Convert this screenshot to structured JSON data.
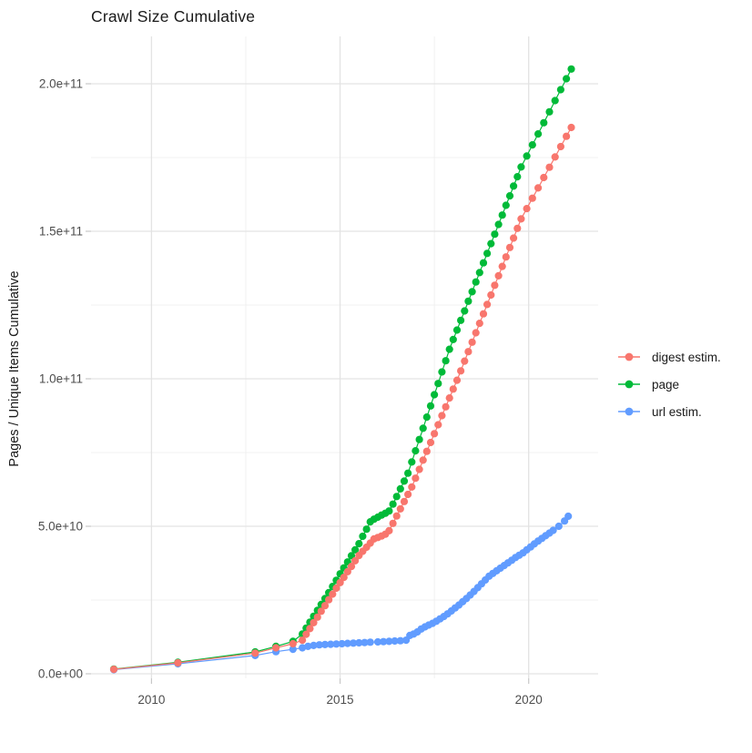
{
  "chart_data": {
    "type": "scatter",
    "title": "Crawl Size Cumulative",
    "xlabel": "",
    "ylabel": "Pages / Unique Items Cumulative",
    "note": "point values are in billions (1e9); y tick labels shown in scientific notation",
    "xlim": [
      2008.4,
      2021.9
    ],
    "ylim_billions": [
      0,
      216
    ],
    "grid": true,
    "legend_position": "right",
    "x_ticks": [
      {
        "v": 2010,
        "label": "2010"
      },
      {
        "v": 2015,
        "label": "2015"
      },
      {
        "v": 2020,
        "label": "2020"
      }
    ],
    "x_minor_ticks": [
      2012.5,
      2017.5
    ],
    "y_ticks": [
      {
        "v": 0,
        "label": "0.0e+00"
      },
      {
        "v": 50,
        "label": "5.0e+10"
      },
      {
        "v": 100,
        "label": "1.0e+11"
      },
      {
        "v": 150,
        "label": "1.5e+11"
      },
      {
        "v": 200,
        "label": "2.0e+11"
      }
    ],
    "y_minor_ticks": [
      25,
      75,
      125,
      175
    ],
    "theme": {
      "grid_major_color": "#e3e3e3",
      "grid_minor_color": "#f0f0f0",
      "tick_color": "#c8c8c8",
      "axis_text_color": "#4d4d4d",
      "title_color": "#1a1a1a",
      "background": "#ffffff"
    },
    "series": [
      {
        "name": "digest estim.",
        "color": "#F8766D",
        "points": [
          [
            2009.0,
            1.5
          ],
          [
            2010.7,
            3.7
          ],
          [
            2012.75,
            7.0
          ],
          [
            2013.3,
            8.8
          ],
          [
            2013.75,
            10.2
          ],
          [
            2014.0,
            11.4
          ],
          [
            2014.1,
            13.4
          ],
          [
            2014.2,
            15.3
          ],
          [
            2014.3,
            17.3
          ],
          [
            2014.4,
            19.2
          ],
          [
            2014.5,
            21.2
          ],
          [
            2014.6,
            23.1
          ],
          [
            2014.7,
            25.1
          ],
          [
            2014.8,
            27.0
          ],
          [
            2014.9,
            29.0
          ],
          [
            2015.0,
            30.9
          ],
          [
            2015.1,
            32.7
          ],
          [
            2015.2,
            34.6
          ],
          [
            2015.3,
            36.4
          ],
          [
            2015.4,
            38.3
          ],
          [
            2015.5,
            40.1
          ],
          [
            2015.6,
            41.5
          ],
          [
            2015.7,
            42.9
          ],
          [
            2015.8,
            44.3
          ],
          [
            2015.9,
            45.7
          ],
          [
            2016.0,
            46.2
          ],
          [
            2016.1,
            46.7
          ],
          [
            2016.2,
            47.3
          ],
          [
            2016.3,
            48.5
          ],
          [
            2016.4,
            51.0
          ],
          [
            2016.5,
            53.5
          ],
          [
            2016.6,
            55.9
          ],
          [
            2016.7,
            58.4
          ],
          [
            2016.8,
            60.8
          ],
          [
            2016.9,
            63.3
          ],
          [
            2017.0,
            66.3
          ],
          [
            2017.1,
            69.3
          ],
          [
            2017.2,
            72.4
          ],
          [
            2017.3,
            75.4
          ],
          [
            2017.4,
            78.4
          ],
          [
            2017.5,
            81.4
          ],
          [
            2017.6,
            84.4
          ],
          [
            2017.7,
            87.5
          ],
          [
            2017.8,
            90.5
          ],
          [
            2017.9,
            93.5
          ],
          [
            2018.0,
            96.5
          ],
          [
            2018.1,
            99.5
          ],
          [
            2018.2,
            102.7
          ],
          [
            2018.3,
            106.0
          ],
          [
            2018.4,
            109.2
          ],
          [
            2018.5,
            112.4
          ],
          [
            2018.6,
            115.6
          ],
          [
            2018.7,
            118.8
          ],
          [
            2018.8,
            122.0
          ],
          [
            2018.9,
            125.2
          ],
          [
            2019.0,
            128.4
          ],
          [
            2019.1,
            131.7
          ],
          [
            2019.2,
            134.9
          ],
          [
            2019.3,
            138.1
          ],
          [
            2019.4,
            141.3
          ],
          [
            2019.5,
            144.5
          ],
          [
            2019.6,
            147.7
          ],
          [
            2019.7,
            151.0
          ],
          [
            2019.8,
            154.2
          ],
          [
            2019.95,
            157.7
          ],
          [
            2020.1,
            161.2
          ],
          [
            2020.25,
            164.7
          ],
          [
            2020.4,
            168.2
          ],
          [
            2020.55,
            171.7
          ],
          [
            2020.7,
            175.2
          ],
          [
            2020.85,
            178.7
          ],
          [
            2021.0,
            182.2
          ],
          [
            2021.13,
            185.2
          ]
        ]
      },
      {
        "name": "page",
        "color": "#00BA38",
        "points": [
          [
            2009.0,
            1.6
          ],
          [
            2010.7,
            3.9
          ],
          [
            2012.75,
            7.4
          ],
          [
            2013.3,
            9.3
          ],
          [
            2013.75,
            11.0
          ],
          [
            2014.0,
            13.5
          ],
          [
            2014.1,
            15.5
          ],
          [
            2014.2,
            17.5
          ],
          [
            2014.3,
            19.5
          ],
          [
            2014.4,
            21.5
          ],
          [
            2014.5,
            23.5
          ],
          [
            2014.6,
            25.5
          ],
          [
            2014.7,
            27.5
          ],
          [
            2014.8,
            29.6
          ],
          [
            2014.9,
            31.7
          ],
          [
            2015.0,
            33.9
          ],
          [
            2015.1,
            35.9
          ],
          [
            2015.2,
            37.9
          ],
          [
            2015.3,
            40.0
          ],
          [
            2015.4,
            42.0
          ],
          [
            2015.5,
            44.1
          ],
          [
            2015.6,
            46.6
          ],
          [
            2015.7,
            49.0
          ],
          [
            2015.8,
            51.5
          ],
          [
            2015.9,
            52.4
          ],
          [
            2016.0,
            53.1
          ],
          [
            2016.1,
            53.8
          ],
          [
            2016.2,
            54.4
          ],
          [
            2016.3,
            55.2
          ],
          [
            2016.4,
            57.5
          ],
          [
            2016.5,
            60.1
          ],
          [
            2016.6,
            62.7
          ],
          [
            2016.7,
            65.3
          ],
          [
            2016.8,
            68.0
          ],
          [
            2016.9,
            71.8
          ],
          [
            2017.0,
            75.6
          ],
          [
            2017.1,
            79.4
          ],
          [
            2017.2,
            83.2
          ],
          [
            2017.3,
            87.0
          ],
          [
            2017.4,
            90.8
          ],
          [
            2017.5,
            94.6
          ],
          [
            2017.6,
            98.4
          ],
          [
            2017.7,
            102.3
          ],
          [
            2017.8,
            106.1
          ],
          [
            2017.9,
            110.0
          ],
          [
            2018.0,
            113.3
          ],
          [
            2018.1,
            116.5
          ],
          [
            2018.2,
            119.8
          ],
          [
            2018.3,
            123.0
          ],
          [
            2018.4,
            126.3
          ],
          [
            2018.5,
            129.5
          ],
          [
            2018.6,
            132.8
          ],
          [
            2018.7,
            136.0
          ],
          [
            2018.8,
            139.3
          ],
          [
            2018.9,
            142.5
          ],
          [
            2019.0,
            145.8
          ],
          [
            2019.1,
            149.0
          ],
          [
            2019.2,
            152.3
          ],
          [
            2019.3,
            155.5
          ],
          [
            2019.4,
            158.8
          ],
          [
            2019.5,
            162.0
          ],
          [
            2019.6,
            165.3
          ],
          [
            2019.7,
            168.5
          ],
          [
            2019.8,
            171.8
          ],
          [
            2019.95,
            175.5
          ],
          [
            2020.1,
            179.3
          ],
          [
            2020.25,
            183.0
          ],
          [
            2020.4,
            186.8
          ],
          [
            2020.55,
            190.5
          ],
          [
            2020.7,
            194.3
          ],
          [
            2020.85,
            198.0
          ],
          [
            2021.0,
            201.7
          ],
          [
            2021.13,
            205.0
          ]
        ]
      },
      {
        "name": "url estim.",
        "color": "#619CFF",
        "points": [
          [
            2009.0,
            1.4
          ],
          [
            2010.7,
            3.4
          ],
          [
            2012.75,
            6.2
          ],
          [
            2013.3,
            7.5
          ],
          [
            2013.75,
            8.3
          ],
          [
            2014.0,
            8.8
          ],
          [
            2014.15,
            9.3
          ],
          [
            2014.3,
            9.6
          ],
          [
            2014.45,
            9.8
          ],
          [
            2014.6,
            9.9
          ],
          [
            2014.75,
            10.0
          ],
          [
            2014.9,
            10.1
          ],
          [
            2015.05,
            10.2
          ],
          [
            2015.2,
            10.3
          ],
          [
            2015.35,
            10.4
          ],
          [
            2015.5,
            10.5
          ],
          [
            2015.65,
            10.6
          ],
          [
            2015.8,
            10.7
          ],
          [
            2016.0,
            10.8
          ],
          [
            2016.15,
            10.9
          ],
          [
            2016.3,
            11.0
          ],
          [
            2016.45,
            11.1
          ],
          [
            2016.6,
            11.2
          ],
          [
            2016.75,
            11.4
          ],
          [
            2016.85,
            13.0
          ],
          [
            2016.95,
            13.5
          ],
          [
            2017.05,
            14.2
          ],
          [
            2017.15,
            15.2
          ],
          [
            2017.25,
            15.9
          ],
          [
            2017.35,
            16.5
          ],
          [
            2017.45,
            17.1
          ],
          [
            2017.55,
            17.8
          ],
          [
            2017.65,
            18.6
          ],
          [
            2017.75,
            19.4
          ],
          [
            2017.85,
            20.3
          ],
          [
            2017.95,
            21.3
          ],
          [
            2018.05,
            22.3
          ],
          [
            2018.15,
            23.3
          ],
          [
            2018.25,
            24.4
          ],
          [
            2018.35,
            25.5
          ],
          [
            2018.45,
            26.7
          ],
          [
            2018.55,
            27.9
          ],
          [
            2018.65,
            29.2
          ],
          [
            2018.75,
            30.5
          ],
          [
            2018.85,
            31.8
          ],
          [
            2018.95,
            33.1
          ],
          [
            2019.05,
            34.0
          ],
          [
            2019.15,
            34.9
          ],
          [
            2019.25,
            35.8
          ],
          [
            2019.35,
            36.7
          ],
          [
            2019.45,
            37.6
          ],
          [
            2019.55,
            38.5
          ],
          [
            2019.65,
            39.4
          ],
          [
            2019.75,
            40.2
          ],
          [
            2019.85,
            41.0
          ],
          [
            2019.95,
            42.0
          ],
          [
            2020.05,
            43.0
          ],
          [
            2020.15,
            44.0
          ],
          [
            2020.25,
            45.0
          ],
          [
            2020.35,
            45.9
          ],
          [
            2020.45,
            46.8
          ],
          [
            2020.55,
            47.7
          ],
          [
            2020.65,
            48.6
          ],
          [
            2020.8,
            50.0
          ],
          [
            2020.95,
            51.8
          ],
          [
            2021.05,
            53.4
          ]
        ]
      }
    ]
  }
}
